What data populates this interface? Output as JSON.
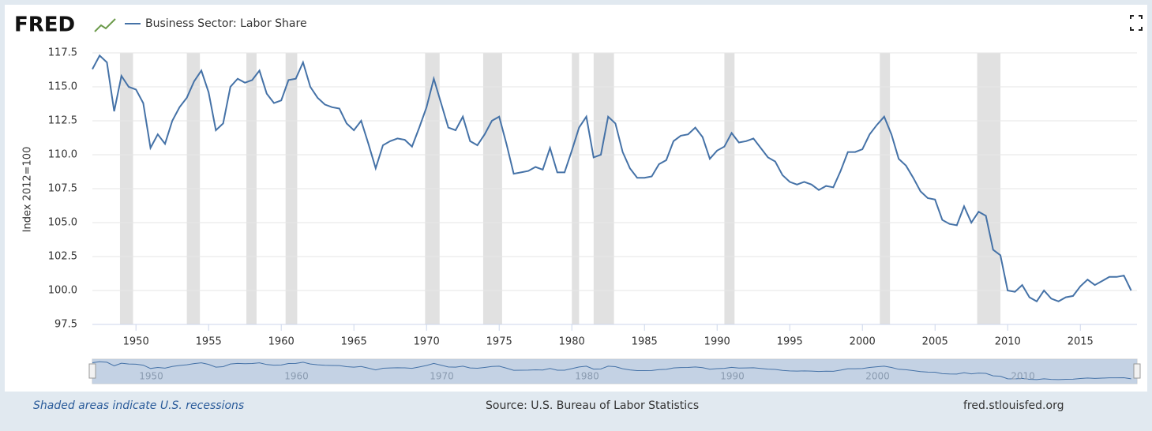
{
  "chart_data": {
    "type": "line",
    "brand": "FRED",
    "y_label": "Index 2012=100",
    "xlim": [
      1947,
      2018.9
    ],
    "xticks": [
      1950,
      1955,
      1960,
      1965,
      1970,
      1975,
      1980,
      1985,
      1990,
      1995,
      2000,
      2005,
      2010,
      2015
    ],
    "ylim": [
      97.5,
      117.5
    ],
    "yticks": [
      97.5,
      {
        "value": 100,
        "label": "100.0"
      },
      102.5,
      {
        "value": 105,
        "label": "105.0"
      },
      107.5,
      {
        "value": 110,
        "label": "110.0"
      },
      112.5,
      {
        "value": 115,
        "label": "115.0"
      },
      117.5
    ],
    "grid": true,
    "recessions": [
      [
        1948.9,
        1949.8
      ],
      [
        1953.5,
        1954.4
      ],
      [
        1957.6,
        1958.3
      ],
      [
        1960.3,
        1961.1
      ],
      [
        1969.9,
        1970.9
      ],
      [
        1973.9,
        1975.2
      ],
      [
        1980.0,
        1980.5
      ],
      [
        1981.5,
        1982.9
      ],
      [
        1990.5,
        1991.2
      ],
      [
        2001.2,
        2001.9
      ],
      [
        2007.9,
        2009.5
      ]
    ],
    "x": [
      1947,
      1947.5,
      1948,
      1948.5,
      1949,
      1949.5,
      1950,
      1950.5,
      1951,
      1951.5,
      1952,
      1952.5,
      1953,
      1953.5,
      1954,
      1954.5,
      1955,
      1955.5,
      1956,
      1956.5,
      1957,
      1957.5,
      1958,
      1958.5,
      1959,
      1959.5,
      1960,
      1960.5,
      1961,
      1961.5,
      1962,
      1962.5,
      1963,
      1963.5,
      1964,
      1964.5,
      1965,
      1965.5,
      1966,
      1966.5,
      1967,
      1967.5,
      1968,
      1968.5,
      1969,
      1969.5,
      1970,
      1970.5,
      1971,
      1971.5,
      1972,
      1972.5,
      1973,
      1973.5,
      1974,
      1974.5,
      1975,
      1975.5,
      1976,
      1976.5,
      1977,
      1977.5,
      1978,
      1978.5,
      1979,
      1979.5,
      1980,
      1980.5,
      1981,
      1981.5,
      1982,
      1982.5,
      1983,
      1983.5,
      1984,
      1984.5,
      1985,
      1985.5,
      1986,
      1986.5,
      1987,
      1987.5,
      1988,
      1988.5,
      1989,
      1989.5,
      1990,
      1990.5,
      1991,
      1991.5,
      1992,
      1992.5,
      1993,
      1993.5,
      1994,
      1994.5,
      1995,
      1995.5,
      1996,
      1996.5,
      1997,
      1997.5,
      1998,
      1998.5,
      1999,
      1999.5,
      2000,
      2000.5,
      2001,
      2001.5,
      2002,
      2002.5,
      2003,
      2003.5,
      2004,
      2004.5,
      2005,
      2005.5,
      2006,
      2006.5,
      2007,
      2007.5,
      2008,
      2008.5,
      2009,
      2009.5,
      2010,
      2010.5,
      2011,
      2011.5,
      2012,
      2012.5,
      2013,
      2013.5,
      2014,
      2014.5,
      2015,
      2015.5,
      2016,
      2016.5,
      2017,
      2017.5,
      2018,
      2018.5
    ],
    "series": [
      {
        "name": "Business Sector: Labor Share",
        "color": "#4572a7",
        "values": [
          116.3,
          117.3,
          116.8,
          113.2,
          115.8,
          115.0,
          114.8,
          113.8,
          110.5,
          111.5,
          110.8,
          112.5,
          113.5,
          114.2,
          115.4,
          116.2,
          114.6,
          111.8,
          112.3,
          115.0,
          115.6,
          115.3,
          115.5,
          116.2,
          114.5,
          113.8,
          114.0,
          115.5,
          115.6,
          116.8,
          115.0,
          114.2,
          113.7,
          113.5,
          113.4,
          112.3,
          111.8,
          112.5,
          110.8,
          109.0,
          110.7,
          111.0,
          111.2,
          111.1,
          110.6,
          112.0,
          113.5,
          115.6,
          113.8,
          112.0,
          111.8,
          112.8,
          111.0,
          110.7,
          111.5,
          112.5,
          112.8,
          110.8,
          108.6,
          108.7,
          108.8,
          109.1,
          108.9,
          110.5,
          108.7,
          108.7,
          110.3,
          112.0,
          112.8,
          109.8,
          110.0,
          112.8,
          112.3,
          110.2,
          109.0,
          108.3,
          108.3,
          108.4,
          109.3,
          109.6,
          111.0,
          111.4,
          111.5,
          112.0,
          111.3,
          109.7,
          110.3,
          110.6,
          111.6,
          110.9,
          111.0,
          111.2,
          110.5,
          109.8,
          109.5,
          108.5,
          108.0,
          107.8,
          108.0,
          107.8,
          107.4,
          107.7,
          107.6,
          108.8,
          110.2,
          110.2,
          110.4,
          111.5,
          112.2,
          112.8,
          111.5,
          109.7,
          109.2,
          108.3,
          107.3,
          106.8,
          106.7,
          105.2,
          104.9,
          104.8,
          106.2,
          105.0,
          105.8,
          105.5,
          103.0,
          102.6,
          100.0,
          99.9,
          100.4,
          99.5,
          99.2,
          100.0,
          99.4,
          99.2,
          99.5,
          99.6,
          100.3,
          100.8,
          100.4,
          100.7,
          101.0,
          101.0,
          101.1,
          100.0
        ]
      }
    ],
    "navigator": {
      "xticks": [
        1950,
        1960,
        1970,
        1980,
        1990,
        2000,
        2010
      ]
    },
    "note": "Shaded areas indicate U.S. recessions",
    "source": "Source: U.S. Bureau of Labor Statistics",
    "site": "fred.stlouisfed.org"
  }
}
